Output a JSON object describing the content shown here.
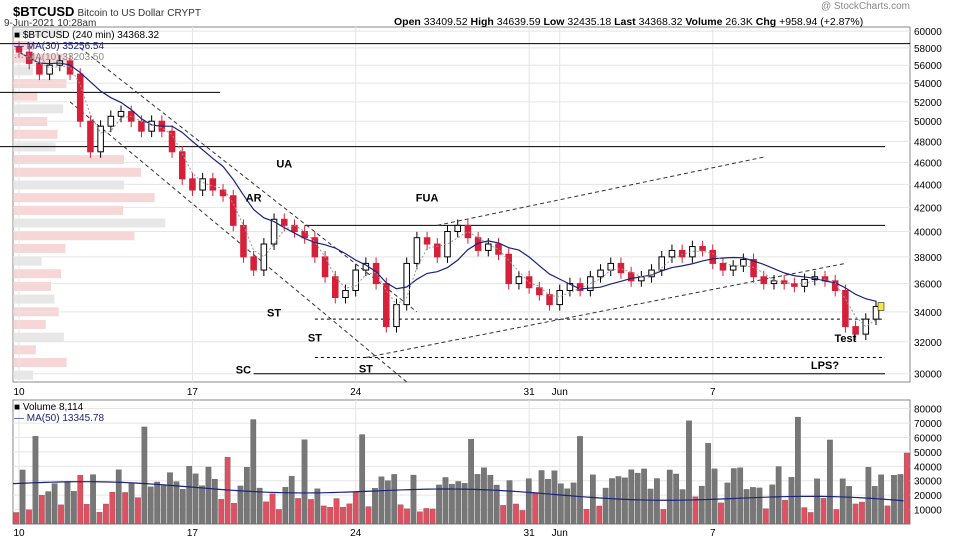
{
  "header": {
    "symbol": "$BTCUSD",
    "name": "Bitcoin to US Dollar",
    "exchange": "CRYPT",
    "date": "9-Jun-2021 10:28am",
    "watermark": "@ StockCharts.com",
    "ohlc": {
      "open_label": "Open",
      "open": "33409.52",
      "high_label": "High",
      "high": "34639.59",
      "low_label": "Low",
      "low": "32435.18",
      "last_label": "Last",
      "last": "34368.32",
      "volume_label": "Volume",
      "volume": "26.3K",
      "chg_label": "Chg",
      "chg": "+958.94 (+2.87%)"
    }
  },
  "legend": {
    "price": "$BTCUSD (240 min) 34368.32",
    "ma30": "MA(30) 35256.54",
    "ma10": "MA(10) 33203.50",
    "volume": "Volume 8,114",
    "vol_ma": "MA(50) 13345.78"
  },
  "colors": {
    "up": "#000000",
    "down": "#d6203a",
    "ma30": "#1a237e",
    "ma10": "#999999",
    "vol_up": "#777777",
    "vol_down": "#e05060",
    "vol_ma": "#1a237e",
    "vp": "#f2c4c4",
    "vp_gray": "#dddddd",
    "grid": "#e5e5e5"
  },
  "annotations": [
    "UA",
    "AR",
    "FUA",
    "ST",
    "ST",
    "ST",
    "SC",
    "LPS?",
    "Test"
  ],
  "chart_data": [
    {
      "type": "candlestick",
      "title": "$BTCUSD Bitcoin to US Dollar",
      "x_ticks": [
        "10",
        "17",
        "24",
        "31",
        "Jun",
        "7"
      ],
      "y_ticks": [
        30000,
        32000,
        34000,
        36000,
        38000,
        40000,
        42000,
        44000,
        46000,
        48000,
        50000,
        52000,
        54000,
        56000,
        58000,
        60000
      ],
      "ylim": [
        29500,
        60500
      ],
      "y_scale": "log",
      "series": [
        {
          "name": "$BTCUSD",
          "close_path": [
            [
              0,
              57500
            ],
            [
              1,
              56200
            ],
            [
              2,
              55000
            ],
            [
              3,
              56000
            ],
            [
              4,
              56500
            ],
            [
              5,
              55000
            ],
            [
              6,
              50000
            ],
            [
              7,
              47000
            ],
            [
              8,
              49500
            ],
            [
              9,
              50500
            ],
            [
              10,
              51000
            ],
            [
              11,
              50000
            ],
            [
              12,
              49000
            ],
            [
              13,
              50000
            ],
            [
              14,
              49000
            ],
            [
              15,
              47000
            ],
            [
              16,
              44500
            ],
            [
              17,
              43500
            ],
            [
              18,
              44500
            ],
            [
              19,
              43500
            ],
            [
              20,
              43000
            ],
            [
              21,
              40500
            ],
            [
              22,
              38000
            ],
            [
              23,
              37000
            ],
            [
              24,
              39000
            ],
            [
              25,
              41000
            ],
            [
              26,
              40500
            ],
            [
              27,
              40000
            ],
            [
              28,
              39500
            ],
            [
              29,
              38000
            ],
            [
              30,
              36500
            ],
            [
              31,
              35000
            ],
            [
              32,
              35500
            ],
            [
              33,
              37000
            ],
            [
              34,
              37500
            ],
            [
              35,
              36000
            ],
            [
              36,
              33000
            ],
            [
              37,
              34500
            ],
            [
              38,
              37500
            ],
            [
              39,
              39500
            ],
            [
              40,
              39000
            ],
            [
              41,
              38000
            ],
            [
              42,
              40000
            ],
            [
              43,
              40500
            ],
            [
              44,
              39500
            ],
            [
              45,
              38500
            ],
            [
              46,
              39000
            ],
            [
              47,
              38200
            ],
            [
              48,
              36000
            ],
            [
              49,
              36500
            ],
            [
              50,
              35700
            ],
            [
              51,
              35200
            ],
            [
              52,
              34500
            ],
            [
              53,
              35500
            ],
            [
              54,
              36000
            ],
            [
              55,
              35500
            ],
            [
              56,
              36500
            ],
            [
              57,
              37000
            ],
            [
              58,
              37500
            ],
            [
              59,
              36800
            ],
            [
              60,
              36200
            ],
            [
              61,
              36500
            ],
            [
              62,
              37000
            ],
            [
              63,
              38000
            ],
            [
              64,
              38500
            ],
            [
              65,
              38000
            ],
            [
              66,
              38800
            ],
            [
              67,
              38500
            ],
            [
              68,
              37500
            ],
            [
              69,
              37000
            ],
            [
              70,
              37300
            ],
            [
              71,
              37800
            ],
            [
              72,
              36500
            ],
            [
              73,
              36000
            ],
            [
              74,
              36200
            ],
            [
              75,
              36000
            ],
            [
              76,
              35800
            ],
            [
              77,
              36300
            ],
            [
              78,
              36500
            ],
            [
              79,
              36200
            ],
            [
              80,
              35500
            ],
            [
              81,
              33000
            ],
            [
              82,
              32500
            ],
            [
              83,
              33500
            ],
            [
              84,
              34368
            ]
          ]
        }
      ],
      "levels": [
        {
          "name": "upper-resistance",
          "value": 40500
        },
        {
          "name": "mid-support",
          "value": 33500
        },
        {
          "name": "low-support",
          "value": 31000
        },
        {
          "name": "sc-low",
          "value": 30000
        },
        {
          "name": "range-high-1",
          "value": 58500
        },
        {
          "name": "range-high-2",
          "value": 53000
        },
        {
          "name": "range-high-3",
          "value": 47500
        }
      ]
    },
    {
      "type": "bar",
      "title": "Volume",
      "y_ticks": [
        10000,
        20000,
        30000,
        40000,
        50000,
        60000,
        70000,
        80000
      ],
      "ylim": [
        0,
        86000
      ]
    }
  ]
}
